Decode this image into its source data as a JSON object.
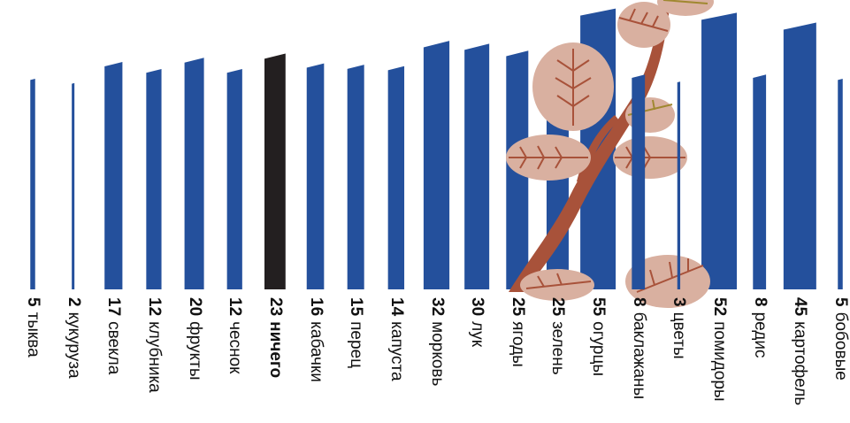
{
  "chart_data": {
    "type": "bar",
    "categories": [
      "тыква",
      "кукуруза",
      "свекла",
      "клубника",
      "фрукты",
      "чеснок",
      "ничего",
      "кабачки",
      "перец",
      "капуста",
      "морковь",
      "лук",
      "ягоды",
      "зелень",
      "огурцы",
      "баклажаны",
      "цветы",
      "помидоры",
      "редис",
      "картофель",
      "бобовые"
    ],
    "values": [
      5,
      2,
      17,
      12,
      20,
      12,
      23,
      16,
      15,
      14,
      32,
      30,
      25,
      25,
      55,
      8,
      3,
      52,
      8,
      45,
      5
    ],
    "highlight": "ничего",
    "colors": {
      "bar": "#24509c",
      "highlight": "#231f20",
      "text": "#111111"
    }
  }
}
